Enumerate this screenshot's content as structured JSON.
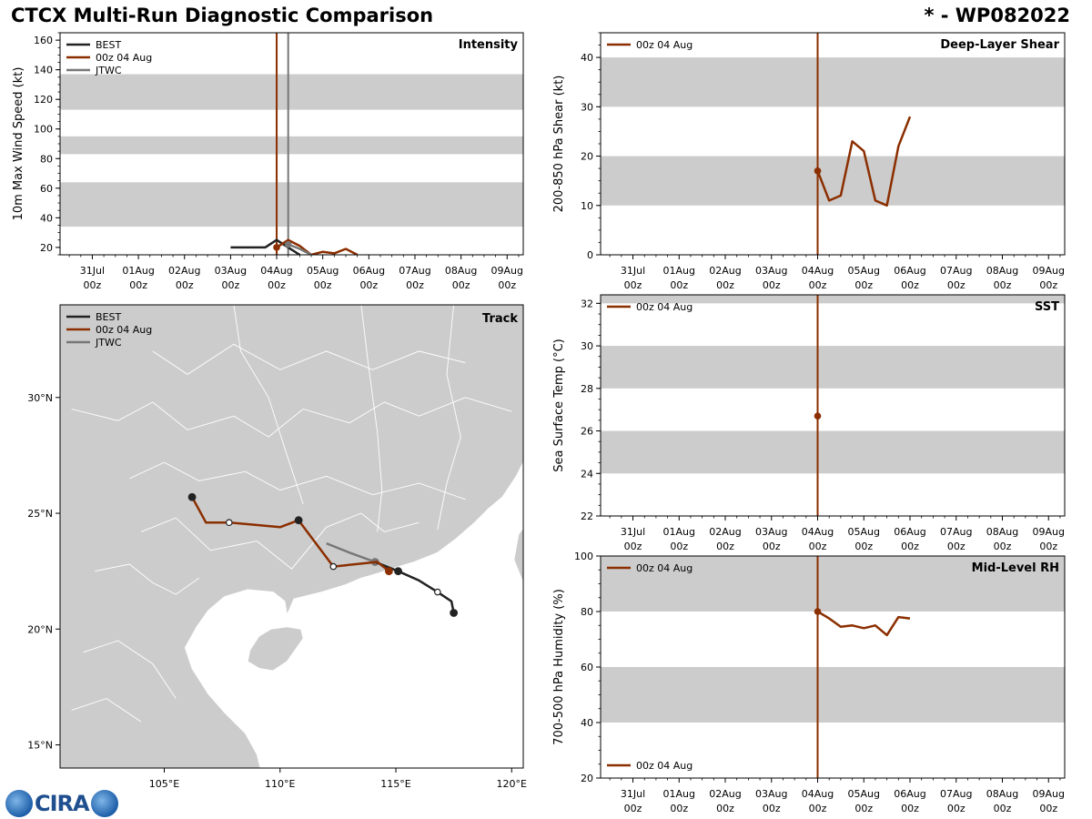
{
  "header": {
    "title": "CTCX Multi-Run Diagnostic Comparison",
    "storm_id": "* - WP082022"
  },
  "time_axis": {
    "tick_days": [
      0,
      1,
      2,
      3,
      4,
      5,
      6,
      7,
      8,
      9
    ],
    "tick_labels": [
      "31Jul",
      "01Aug",
      "02Aug",
      "03Aug",
      "04Aug",
      "05Aug",
      "06Aug",
      "07Aug",
      "08Aug",
      "09Aug"
    ],
    "tick_sublabel": "00z",
    "range_days": [
      -0.7,
      9.35
    ]
  },
  "chart_data": [
    {
      "id": "intensity",
      "type": "line",
      "title": "Intensity",
      "ylabel": "10m Max Wind Speed (kt)",
      "ylim": [
        15,
        165
      ],
      "yticks": [
        20,
        40,
        60,
        80,
        100,
        120,
        140,
        160
      ],
      "bands": [
        [
          34,
          64
        ],
        [
          83,
          95
        ],
        [
          113,
          137
        ]
      ],
      "init_marker_day": 4.0,
      "jtwc_marker_day": 4.25,
      "legend": [
        {
          "name": "BEST",
          "color": "#222222"
        },
        {
          "name": "00z 04 Aug",
          "color": "#8b2e00"
        },
        {
          "name": "JTWC",
          "color": "#777777"
        }
      ],
      "series": [
        {
          "name": "BEST",
          "color": "#222222",
          "points": [
            [
              3.0,
              20
            ],
            [
              3.25,
              20
            ],
            [
              3.5,
              20
            ],
            [
              3.75,
              20
            ],
            [
              4.0,
              25
            ],
            [
              4.25,
              20
            ],
            [
              4.5,
              15
            ]
          ]
        },
        {
          "name": "00z 04 Aug",
          "color": "#8b2e00",
          "start_dot": true,
          "points": [
            [
              4.0,
              20
            ],
            [
              4.25,
              25
            ],
            [
              4.5,
              21
            ],
            [
              4.75,
              15
            ],
            [
              5.0,
              17
            ],
            [
              5.25,
              16
            ],
            [
              5.5,
              19
            ],
            [
              5.75,
              15
            ]
          ]
        },
        {
          "name": "JTWC",
          "color": "#777777",
          "start_dot": true,
          "points": [
            [
              4.25,
              22
            ],
            [
              4.5,
              19
            ],
            [
              4.75,
              15
            ]
          ]
        }
      ]
    },
    {
      "id": "shear",
      "type": "line",
      "title": "Deep-Layer Shear",
      "ylabel": "200-850 hPa Shear (kt)",
      "ylim": [
        0,
        45
      ],
      "yticks": [
        0,
        10,
        20,
        30,
        40
      ],
      "bands": [
        [
          10,
          20
        ],
        [
          30,
          40
        ]
      ],
      "init_marker_day": 4.0,
      "legend": [
        {
          "name": "00z 04 Aug",
          "color": "#8b2e00"
        }
      ],
      "series": [
        {
          "name": "00z 04 Aug",
          "color": "#8b2e00",
          "start_dot": true,
          "points": [
            [
              4.0,
              17
            ],
            [
              4.25,
              11
            ],
            [
              4.5,
              12
            ],
            [
              4.75,
              23
            ],
            [
              5.0,
              21
            ],
            [
              5.25,
              11
            ],
            [
              5.5,
              10
            ],
            [
              5.75,
              22
            ],
            [
              6.0,
              28
            ]
          ]
        }
      ]
    },
    {
      "id": "sst",
      "type": "line",
      "title": "SST",
      "ylabel": "Sea Surface Temp (°C)",
      "ylim": [
        22,
        32.4
      ],
      "yticks": [
        22,
        24,
        26,
        28,
        30,
        32
      ],
      "bands": [
        [
          24,
          26
        ],
        [
          28,
          30
        ],
        [
          32,
          34
        ]
      ],
      "init_marker_day": 4.0,
      "legend": [
        {
          "name": "00z 04 Aug",
          "color": "#8b2e00"
        }
      ],
      "series": [
        {
          "name": "00z 04 Aug",
          "color": "#8b2e00",
          "start_dot": true,
          "points": [
            [
              4.0,
              26.7
            ]
          ]
        }
      ]
    },
    {
      "id": "rh",
      "type": "line",
      "title": "Mid-Level RH",
      "ylabel": "700-500 hPa Humidity (%)",
      "ylim": [
        20,
        100
      ],
      "yticks": [
        20,
        40,
        60,
        80,
        100
      ],
      "bands": [
        [
          40,
          60
        ],
        [
          80,
          100
        ]
      ],
      "init_marker_day": 4.0,
      "legend": [
        {
          "name": "00z 04 Aug",
          "color": "#8b2e00"
        }
      ],
      "series": [
        {
          "name": "00z 04 Aug",
          "color": "#8b2e00",
          "start_dot": true,
          "points": [
            [
              4.0,
              80
            ],
            [
              4.25,
              77.5
            ],
            [
              4.5,
              74.5
            ],
            [
              4.75,
              75
            ],
            [
              5.0,
              74
            ],
            [
              5.25,
              75
            ],
            [
              5.5,
              71.5
            ],
            [
              5.75,
              78
            ],
            [
              6.0,
              77.5
            ]
          ]
        }
      ]
    },
    {
      "id": "track",
      "type": "scatter",
      "title": "Track",
      "lon_range": [
        100.5,
        120.5
      ],
      "lat_range": [
        14.0,
        34.0
      ],
      "lon_ticks": [
        105,
        110,
        115,
        120
      ],
      "lon_tick_labels": [
        "105°E",
        "110°E",
        "115°E",
        "120°E"
      ],
      "lat_ticks": [
        15,
        20,
        25,
        30
      ],
      "lat_tick_labels": [
        "15°N",
        "20°N",
        "25°N",
        "30°N"
      ],
      "legend": [
        {
          "name": "BEST",
          "color": "#222222"
        },
        {
          "name": "00z 04 Aug",
          "color": "#8b2e00"
        },
        {
          "name": "JTWC",
          "color": "#777777"
        }
      ],
      "series": [
        {
          "name": "JTWC",
          "color": "#777777",
          "points": [
            [
              112.0,
              23.7
            ],
            [
              113.0,
              23.3
            ],
            [
              114.1,
              22.9
            ]
          ],
          "dots": [
            {
              "i": 2,
              "style": "gray"
            }
          ]
        },
        {
          "name": "BEST",
          "color": "#222222",
          "points": [
            [
              117.5,
              20.7
            ],
            [
              117.4,
              21.2
            ],
            [
              116.8,
              21.6
            ],
            [
              116.0,
              22.1
            ],
            [
              115.1,
              22.5
            ],
            [
              114.1,
              22.9
            ]
          ],
          "dots": [
            {
              "i": 0,
              "style": "solid"
            },
            {
              "i": 2,
              "style": "open"
            },
            {
              "i": 4,
              "style": "solid"
            }
          ]
        },
        {
          "name": "00z 04 Aug",
          "color": "#8b2e00",
          "points": [
            [
              114.7,
              22.5
            ],
            [
              114.2,
              22.9
            ],
            [
              112.3,
              22.7
            ],
            [
              110.8,
              24.7
            ],
            [
              110.0,
              24.4
            ],
            [
              107.8,
              24.6
            ],
            [
              106.8,
              24.6
            ],
            [
              106.2,
              25.7
            ]
          ],
          "dots": [
            {
              "i": 0,
              "style": "red"
            },
            {
              "i": 2,
              "style": "open"
            },
            {
              "i": 3,
              "style": "solid"
            },
            {
              "i": 5,
              "style": "open"
            },
            {
              "i": 7,
              "style": "solid"
            }
          ]
        }
      ]
    }
  ],
  "logo": {
    "text": "CIRA"
  }
}
